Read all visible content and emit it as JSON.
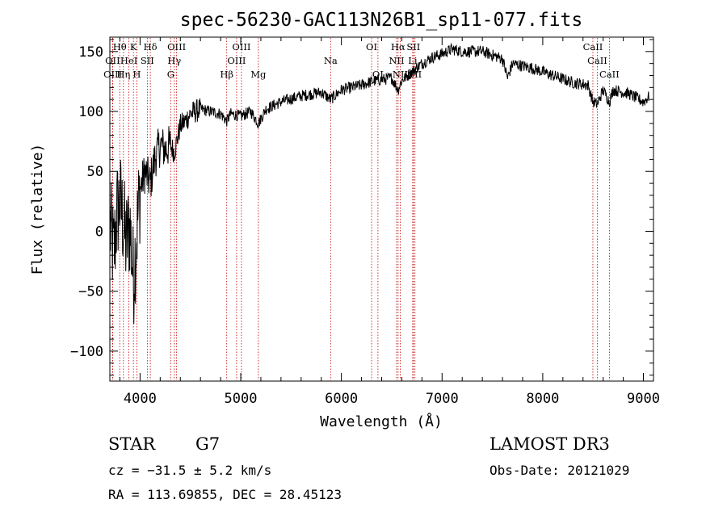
{
  "chart_data": {
    "type": "line",
    "title": "spec-56230-GAC113N26B1_sp11-077.fits",
    "xlabel": "Wavelength (Å)",
    "ylabel": "Flux (relative)",
    "xlim": [
      3700,
      9100
    ],
    "ylim": [
      -125,
      162
    ],
    "x_ticks": [
      4000,
      5000,
      6000,
      7000,
      8000,
      9000
    ],
    "y_ticks": [
      -100,
      -50,
      0,
      50,
      100,
      150
    ],
    "x_tick_labels": [
      "4000",
      "5000",
      "6000",
      "7000",
      "8000",
      "9000"
    ],
    "y_tick_labels": [
      "−100",
      "−50",
      "0",
      "50",
      "100",
      "150"
    ],
    "spectrum_anchors": [
      [
        3700,
        5
      ],
      [
        3740,
        -20
      ],
      [
        3770,
        15
      ],
      [
        3800,
        25
      ],
      [
        3830,
        10
      ],
      [
        3860,
        -10
      ],
      [
        3900,
        5
      ],
      [
        3933,
        -40
      ],
      [
        3968,
        0
      ],
      [
        4000,
        35
      ],
      [
        4050,
        50
      ],
      [
        4101,
        40
      ],
      [
        4150,
        62
      ],
      [
        4200,
        72
      ],
      [
        4250,
        68
      ],
      [
        4300,
        72
      ],
      [
        4340,
        66
      ],
      [
        4400,
        88
      ],
      [
        4450,
        92
      ],
      [
        4500,
        98
      ],
      [
        4600,
        102
      ],
      [
        4700,
        100
      ],
      [
        4800,
        98
      ],
      [
        4861,
        92
      ],
      [
        4900,
        98
      ],
      [
        5000,
        96
      ],
      [
        5100,
        100
      ],
      [
        5175,
        90
      ],
      [
        5250,
        102
      ],
      [
        5400,
        108
      ],
      [
        5600,
        113
      ],
      [
        5800,
        116
      ],
      [
        5893,
        110
      ],
      [
        6000,
        118
      ],
      [
        6200,
        122
      ],
      [
        6300,
        125
      ],
      [
        6500,
        128
      ],
      [
        6563,
        118
      ],
      [
        6600,
        126
      ],
      [
        6700,
        133
      ],
      [
        6800,
        140
      ],
      [
        6900,
        145
      ],
      [
        7000,
        148
      ],
      [
        7100,
        152
      ],
      [
        7200,
        150
      ],
      [
        7400,
        150
      ],
      [
        7600,
        144
      ],
      [
        7650,
        128
      ],
      [
        7700,
        140
      ],
      [
        7900,
        136
      ],
      [
        8100,
        130
      ],
      [
        8300,
        124
      ],
      [
        8450,
        122
      ],
      [
        8498,
        108
      ],
      [
        8542,
        106
      ],
      [
        8600,
        118
      ],
      [
        8662,
        108
      ],
      [
        8700,
        118
      ],
      [
        8850,
        115
      ],
      [
        9000,
        108
      ],
      [
        9050,
        112
      ]
    ],
    "lines": [
      {
        "name": "Hθ",
        "wavelength": 3798,
        "row": 0
      },
      {
        "name": "K",
        "wavelength": 3934,
        "row": 0
      },
      {
        "name": "Hδ",
        "wavelength": 4102,
        "row": 0
      },
      {
        "name": "OIII",
        "wavelength": 4363,
        "row": 0
      },
      {
        "name": "OIII",
        "wavelength": 5007,
        "row": 0
      },
      {
        "name": "OI",
        "wavelength": 6300,
        "row": 0
      },
      {
        "name": "Hα",
        "wavelength": 6563,
        "row": 0
      },
      {
        "name": "SII",
        "wavelength": 6716,
        "row": 0
      },
      {
        "name": "CaII",
        "wavelength": 8498,
        "row": 0
      },
      {
        "name": "OII",
        "wavelength": 3727,
        "row": 1
      },
      {
        "name": "HeI",
        "wavelength": 3889,
        "row": 1
      },
      {
        "name": "SII",
        "wavelength": 4072,
        "row": 1
      },
      {
        "name": "Hγ",
        "wavelength": 4340,
        "row": 1
      },
      {
        "name": "OIII",
        "wavelength": 4959,
        "row": 1
      },
      {
        "name": "Na",
        "wavelength": 5893,
        "row": 1
      },
      {
        "name": "NII",
        "wavelength": 6548,
        "row": 1
      },
      {
        "name": "Li",
        "wavelength": 6708,
        "row": 1
      },
      {
        "name": "CaII",
        "wavelength": 8542,
        "row": 1
      },
      {
        "name": "OIII",
        "wavelength": 3729,
        "row": 2
      },
      {
        "name": "Hη",
        "wavelength": 3835,
        "row": 2
      },
      {
        "name": "H",
        "wavelength": 3968,
        "row": 2
      },
      {
        "name": "G",
        "wavelength": 4305,
        "row": 2
      },
      {
        "name": "Hβ",
        "wavelength": 4861,
        "row": 2
      },
      {
        "name": "Mg",
        "wavelength": 5175,
        "row": 2
      },
      {
        "name": "OI",
        "wavelength": 6363,
        "row": 2
      },
      {
        "name": "NII",
        "wavelength": 6584,
        "row": 2
      },
      {
        "name": "SII",
        "wavelength": 6731,
        "row": 2
      },
      {
        "name": "CaII",
        "wavelength": 8662,
        "row": 2
      }
    ]
  },
  "info": {
    "object_class": "STAR",
    "subclass": "G7",
    "survey": "LAMOST DR3",
    "cz": "cz = −31.5 ± 5.2 km/s",
    "obs_date": "Obs-Date: 20121029",
    "coords": "RA = 113.69855, DEC =  28.45123"
  },
  "colors": {
    "spectrum": "#000000",
    "line_marker": "#c00000",
    "axis": "#000000"
  }
}
